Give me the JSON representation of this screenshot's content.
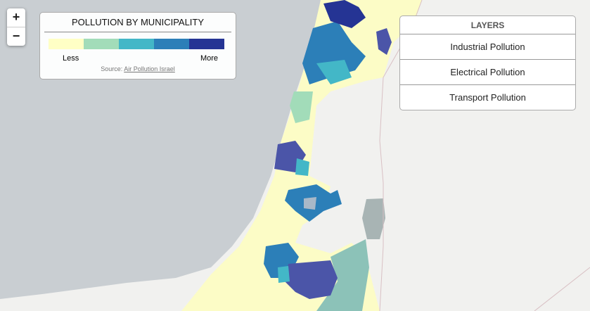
{
  "zoom": {
    "in": "+",
    "out": "−"
  },
  "legend": {
    "title": "POLLUTION BY MUNICIPALITY",
    "colors": [
      "#ffffc5",
      "#a2dcb9",
      "#43b7c7",
      "#2c7fb8",
      "#253494"
    ],
    "low_label": "Less",
    "high_label": "More",
    "source_prefix": "Source:",
    "source_link": "Air Pollution Israel"
  },
  "layers": {
    "title": "LAYERS",
    "items": [
      "Industrial Pollution",
      "Electrical Pollution",
      "Transport Pollution"
    ]
  }
}
